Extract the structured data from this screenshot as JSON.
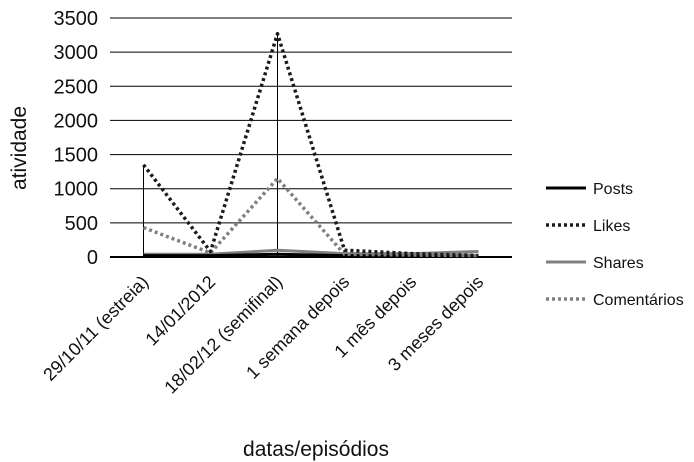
{
  "chart_data": {
    "type": "line",
    "title": "",
    "xlabel": "datas/episódios",
    "ylabel": "atividade",
    "ylim": [
      0,
      3500
    ],
    "yticks": [
      0,
      500,
      1000,
      1500,
      2000,
      2500,
      3000,
      3500
    ],
    "categories": [
      "29/10/11 (estreia)",
      "14/01/2012",
      "18/02/12 (semifinal)",
      "1 semana depois",
      "1 mês depois",
      "3 meses depois"
    ],
    "grid": true,
    "legend_position": "right",
    "series": [
      {
        "name": "Posts",
        "values": [
          20,
          20,
          40,
          20,
          15,
          15
        ],
        "color": "#000000",
        "style": "solid"
      },
      {
        "name": "Likes",
        "values": [
          1350,
          80,
          3270,
          100,
          50,
          20
        ],
        "color": "#1a1a1a",
        "style": "dotted"
      },
      {
        "name": "Shares",
        "values": [
          40,
          40,
          100,
          50,
          50,
          80
        ],
        "color": "#808080",
        "style": "solid"
      },
      {
        "name": "Comentários",
        "values": [
          430,
          60,
          1150,
          40,
          30,
          20
        ],
        "color": "#808080",
        "style": "dotted"
      }
    ]
  }
}
